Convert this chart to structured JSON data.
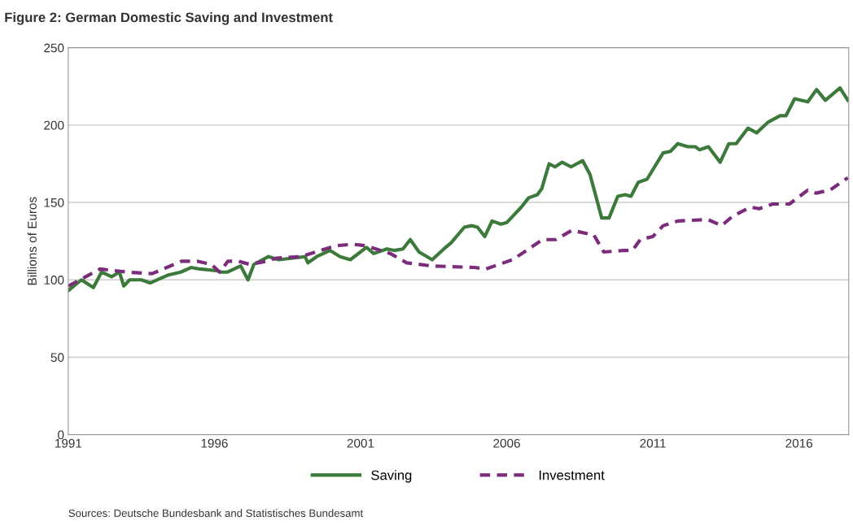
{
  "chart_data": {
    "type": "line",
    "title": "Figure 2: German Domestic Saving and Investment",
    "ylabel": "Billions of Euros",
    "annotations": [
      "Sources: Deutsche Bundesbank and Statistisches Bundesamt"
    ],
    "xlim": [
      1991,
      2017.7
    ],
    "xticks": [
      1991,
      1996,
      2001,
      2006,
      2011,
      2016
    ],
    "ylim": [
      0,
      250
    ],
    "yticks": [
      0,
      50,
      100,
      150,
      200,
      250
    ],
    "grid": "y",
    "legend": "bottom",
    "marker": "none",
    "series": [
      {
        "name": "Saving",
        "color": "#3b7a3b",
        "line_style": "solid",
        "x": [
          1991,
          1991.45,
          1991.86,
          1992.14,
          1992.48,
          1992.75,
          1992.9,
          1993.1,
          1993.5,
          1993.8,
          1994.4,
          1994.85,
          1995.2,
          1995.5,
          1996.05,
          1996.25,
          1996.45,
          1996.9,
          1997.15,
          1997.35,
          1997.85,
          1998.2,
          1999.1,
          1999.2,
          1999.5,
          1999.95,
          2000.3,
          2000.65,
          2001.2,
          2001.45,
          2001.9,
          2002.15,
          2002.45,
          2002.7,
          2003.0,
          2003.45,
          2003.85,
          2004.1,
          2004.55,
          2004.8,
          2005.0,
          2005.25,
          2005.5,
          2005.8,
          2006.0,
          2006.5,
          2006.75,
          2007.05,
          2007.2,
          2007.45,
          2007.65,
          2007.9,
          2008.2,
          2008.6,
          2008.85,
          2009.25,
          2009.5,
          2009.8,
          2010.05,
          2010.25,
          2010.5,
          2010.8,
          2011.35,
          2011.6,
          2011.85,
          2012.2,
          2012.45,
          2012.6,
          2012.9,
          2013.3,
          2013.6,
          2013.85,
          2014.25,
          2014.55,
          2014.95,
          2015.35,
          2015.55,
          2015.85,
          2016.3,
          2016.6,
          2016.9,
          2017.4,
          2017.67
        ],
        "values": [
          93,
          100,
          95,
          105,
          102,
          105,
          96,
          100,
          100,
          98,
          103,
          105,
          108,
          107,
          106,
          105,
          105,
          109,
          100,
          110,
          115,
          113,
          115,
          111,
          115,
          119,
          115,
          113,
          121,
          117,
          120,
          119,
          120,
          126,
          118,
          113,
          120,
          124,
          134,
          135,
          134,
          128,
          138,
          136,
          137,
          147,
          153,
          155,
          159,
          175,
          173,
          176,
          173,
          177,
          168,
          140,
          140,
          154,
          155,
          154,
          163,
          165,
          182,
          183,
          188,
          186,
          186,
          184,
          186,
          176,
          188,
          188,
          198,
          195,
          202,
          206,
          206,
          217,
          215,
          223,
          216,
          224,
          216
        ]
      },
      {
        "name": "Investment",
        "color": "#7b2d7b",
        "line_style": "dashed",
        "x": [
          1991,
          1992.09,
          1993.03,
          1993.87,
          1994.87,
          1995.43,
          1995.9,
          1996.18,
          1996.46,
          1996.82,
          1997.21,
          1997.77,
          1998.13,
          1998.96,
          1999.8,
          2000.16,
          2000.72,
          2001.19,
          2002.02,
          2002.58,
          2003.42,
          2004.9,
          2005.28,
          2006.2,
          2007.23,
          2007.68,
          2008.23,
          2008.98,
          2009.32,
          2010.0,
          2010.3,
          2010.57,
          2011.0,
          2011.35,
          2011.85,
          2012.88,
          2013.35,
          2013.72,
          2014.33,
          2014.64,
          2015.1,
          2015.67,
          2016.3,
          2016.58,
          2017.06,
          2017.67
        ],
        "values": [
          96,
          107,
          105,
          104,
          112,
          112,
          110,
          105,
          112,
          112,
          110,
          112,
          114,
          115,
          120,
          122,
          123,
          122,
          117,
          111,
          109,
          108,
          107,
          113,
          126,
          126,
          132,
          129,
          118,
          119,
          119,
          126,
          128,
          135,
          138,
          139,
          135,
          141,
          147,
          146,
          149,
          149,
          158,
          156,
          158,
          166
        ]
      }
    ]
  }
}
